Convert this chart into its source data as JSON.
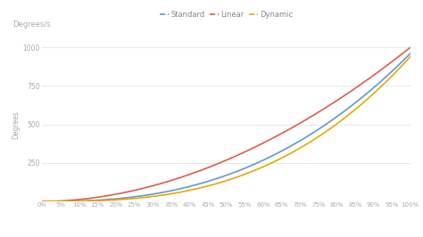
{
  "ylabel_top": "Degrees/s",
  "ylabel_rotated": "Degrees",
  "xlim": [
    0,
    1.0
  ],
  "ylim": [
    0,
    1000
  ],
  "yticks": [
    0,
    250,
    500,
    750,
    1000
  ],
  "xtick_labels": [
    "0%",
    "5%",
    "10%",
    "15%",
    "20%",
    "25%",
    "30%",
    "35%",
    "40%",
    "45%",
    "50%",
    "55%",
    "60%",
    "65%",
    "70%",
    "75%",
    "80%",
    "85%",
    "90%",
    "95%",
    "100%"
  ],
  "bg_color": "#ffffff",
  "grid_color": "#e8e8e8",
  "standard_color": "#5b9bd5",
  "linear_color": "#e05c4a",
  "dynamic_color": "#e8a800",
  "standard_power": 2.5,
  "linear_power": 1.9,
  "dynamic_power": 2.8,
  "standard_scale": 960,
  "linear_scale": 1000,
  "dynamic_scale": 940,
  "legend_labels": [
    "Standard",
    "Linear",
    "Dynamic"
  ],
  "legend_colors": [
    "#5b9bd5",
    "#e05c4a",
    "#e8a800"
  ],
  "legend_marker": [
    "--",
    "--",
    "--"
  ]
}
